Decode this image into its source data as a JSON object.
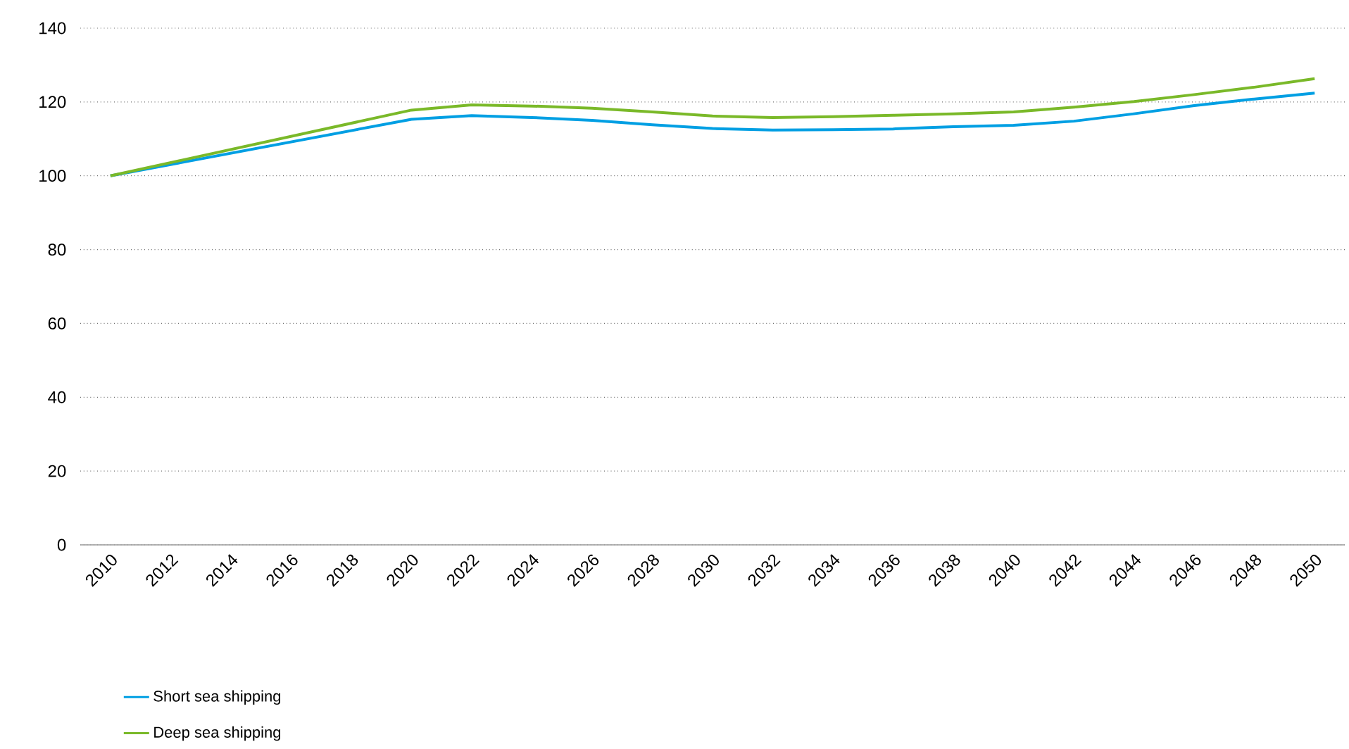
{
  "chart_data": {
    "type": "line",
    "x": [
      2010,
      2020,
      2022,
      2024,
      2026,
      2028,
      2030,
      2032,
      2034,
      2036,
      2038,
      2040,
      2042,
      2044,
      2046,
      2048,
      2050
    ],
    "series": [
      {
        "name": "Short sea shipping",
        "color": "#009fe3",
        "values": [
          100,
          115.3,
          116.3,
          115.8,
          115.0,
          113.8,
          112.8,
          112.4,
          112.5,
          112.7,
          113.3,
          113.7,
          114.8,
          116.8,
          119.0,
          120.8,
          122.4
        ]
      },
      {
        "name": "Deep sea shipping",
        "color": "#7ab929",
        "values": [
          100,
          117.8,
          119.2,
          118.9,
          118.3,
          117.3,
          116.2,
          115.8,
          116.0,
          116.4,
          116.8,
          117.3,
          118.6,
          120.1,
          122.0,
          124.0,
          126.3
        ]
      }
    ],
    "xlim": [
      2009,
      2051
    ],
    "xticks": [
      2010,
      2012,
      2014,
      2016,
      2018,
      2020,
      2022,
      2024,
      2026,
      2028,
      2030,
      2032,
      2034,
      2036,
      2038,
      2040,
      2042,
      2044,
      2046,
      2048,
      2050
    ],
    "ylim": [
      0,
      140
    ],
    "yticks": [
      0,
      20,
      40,
      60,
      80,
      100,
      120,
      140
    ],
    "grid": "y",
    "legend": "bottom left",
    "marker": "none",
    "line_style": "solid"
  }
}
